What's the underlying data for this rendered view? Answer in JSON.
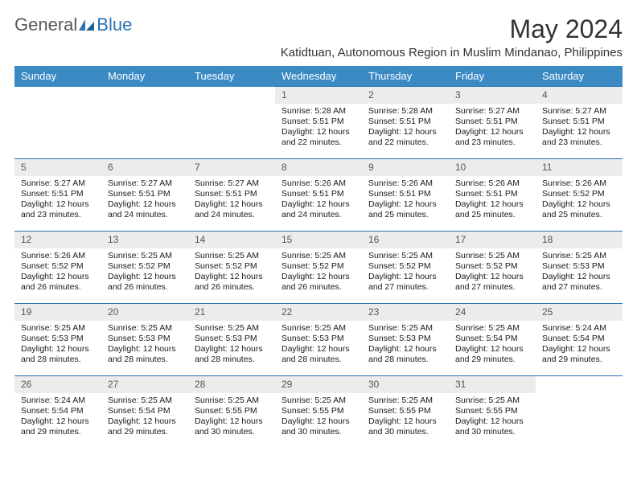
{
  "logo": {
    "general": "General",
    "blue": "Blue"
  },
  "title": "May 2024",
  "subtitle": "Katidtuan, Autonomous Region in Muslim Mindanao, Philippines",
  "colors": {
    "header_bg": "#3b8ac4",
    "header_text": "#ffffff",
    "border": "#2a72b5",
    "daynum_bg": "#ececec",
    "daynum_text": "#555555",
    "body_text": "#1a1a1a",
    "title_color": "#333333",
    "logo_gray": "#585858",
    "logo_blue": "#2a72b5"
  },
  "typography": {
    "title_fontsize": 32,
    "subtitle_fontsize": 15,
    "header_fontsize": 13,
    "cell_fontsize": 10.5,
    "daynum_fontsize": 12
  },
  "dayHeaders": [
    "Sunday",
    "Monday",
    "Tuesday",
    "Wednesday",
    "Thursday",
    "Friday",
    "Saturday"
  ],
  "weeks": [
    [
      null,
      null,
      null,
      {
        "n": "1",
        "sr": "Sunrise: 5:28 AM",
        "ss": "Sunset: 5:51 PM",
        "d1": "Daylight: 12 hours",
        "d2": "and 22 minutes."
      },
      {
        "n": "2",
        "sr": "Sunrise: 5:28 AM",
        "ss": "Sunset: 5:51 PM",
        "d1": "Daylight: 12 hours",
        "d2": "and 22 minutes."
      },
      {
        "n": "3",
        "sr": "Sunrise: 5:27 AM",
        "ss": "Sunset: 5:51 PM",
        "d1": "Daylight: 12 hours",
        "d2": "and 23 minutes."
      },
      {
        "n": "4",
        "sr": "Sunrise: 5:27 AM",
        "ss": "Sunset: 5:51 PM",
        "d1": "Daylight: 12 hours",
        "d2": "and 23 minutes."
      }
    ],
    [
      {
        "n": "5",
        "sr": "Sunrise: 5:27 AM",
        "ss": "Sunset: 5:51 PM",
        "d1": "Daylight: 12 hours",
        "d2": "and 23 minutes."
      },
      {
        "n": "6",
        "sr": "Sunrise: 5:27 AM",
        "ss": "Sunset: 5:51 PM",
        "d1": "Daylight: 12 hours",
        "d2": "and 24 minutes."
      },
      {
        "n": "7",
        "sr": "Sunrise: 5:27 AM",
        "ss": "Sunset: 5:51 PM",
        "d1": "Daylight: 12 hours",
        "d2": "and 24 minutes."
      },
      {
        "n": "8",
        "sr": "Sunrise: 5:26 AM",
        "ss": "Sunset: 5:51 PM",
        "d1": "Daylight: 12 hours",
        "d2": "and 24 minutes."
      },
      {
        "n": "9",
        "sr": "Sunrise: 5:26 AM",
        "ss": "Sunset: 5:51 PM",
        "d1": "Daylight: 12 hours",
        "d2": "and 25 minutes."
      },
      {
        "n": "10",
        "sr": "Sunrise: 5:26 AM",
        "ss": "Sunset: 5:51 PM",
        "d1": "Daylight: 12 hours",
        "d2": "and 25 minutes."
      },
      {
        "n": "11",
        "sr": "Sunrise: 5:26 AM",
        "ss": "Sunset: 5:52 PM",
        "d1": "Daylight: 12 hours",
        "d2": "and 25 minutes."
      }
    ],
    [
      {
        "n": "12",
        "sr": "Sunrise: 5:26 AM",
        "ss": "Sunset: 5:52 PM",
        "d1": "Daylight: 12 hours",
        "d2": "and 26 minutes."
      },
      {
        "n": "13",
        "sr": "Sunrise: 5:25 AM",
        "ss": "Sunset: 5:52 PM",
        "d1": "Daylight: 12 hours",
        "d2": "and 26 minutes."
      },
      {
        "n": "14",
        "sr": "Sunrise: 5:25 AM",
        "ss": "Sunset: 5:52 PM",
        "d1": "Daylight: 12 hours",
        "d2": "and 26 minutes."
      },
      {
        "n": "15",
        "sr": "Sunrise: 5:25 AM",
        "ss": "Sunset: 5:52 PM",
        "d1": "Daylight: 12 hours",
        "d2": "and 26 minutes."
      },
      {
        "n": "16",
        "sr": "Sunrise: 5:25 AM",
        "ss": "Sunset: 5:52 PM",
        "d1": "Daylight: 12 hours",
        "d2": "and 27 minutes."
      },
      {
        "n": "17",
        "sr": "Sunrise: 5:25 AM",
        "ss": "Sunset: 5:52 PM",
        "d1": "Daylight: 12 hours",
        "d2": "and 27 minutes."
      },
      {
        "n": "18",
        "sr": "Sunrise: 5:25 AM",
        "ss": "Sunset: 5:53 PM",
        "d1": "Daylight: 12 hours",
        "d2": "and 27 minutes."
      }
    ],
    [
      {
        "n": "19",
        "sr": "Sunrise: 5:25 AM",
        "ss": "Sunset: 5:53 PM",
        "d1": "Daylight: 12 hours",
        "d2": "and 28 minutes."
      },
      {
        "n": "20",
        "sr": "Sunrise: 5:25 AM",
        "ss": "Sunset: 5:53 PM",
        "d1": "Daylight: 12 hours",
        "d2": "and 28 minutes."
      },
      {
        "n": "21",
        "sr": "Sunrise: 5:25 AM",
        "ss": "Sunset: 5:53 PM",
        "d1": "Daylight: 12 hours",
        "d2": "and 28 minutes."
      },
      {
        "n": "22",
        "sr": "Sunrise: 5:25 AM",
        "ss": "Sunset: 5:53 PM",
        "d1": "Daylight: 12 hours",
        "d2": "and 28 minutes."
      },
      {
        "n": "23",
        "sr": "Sunrise: 5:25 AM",
        "ss": "Sunset: 5:53 PM",
        "d1": "Daylight: 12 hours",
        "d2": "and 28 minutes."
      },
      {
        "n": "24",
        "sr": "Sunrise: 5:25 AM",
        "ss": "Sunset: 5:54 PM",
        "d1": "Daylight: 12 hours",
        "d2": "and 29 minutes."
      },
      {
        "n": "25",
        "sr": "Sunrise: 5:24 AM",
        "ss": "Sunset: 5:54 PM",
        "d1": "Daylight: 12 hours",
        "d2": "and 29 minutes."
      }
    ],
    [
      {
        "n": "26",
        "sr": "Sunrise: 5:24 AM",
        "ss": "Sunset: 5:54 PM",
        "d1": "Daylight: 12 hours",
        "d2": "and 29 minutes."
      },
      {
        "n": "27",
        "sr": "Sunrise: 5:25 AM",
        "ss": "Sunset: 5:54 PM",
        "d1": "Daylight: 12 hours",
        "d2": "and 29 minutes."
      },
      {
        "n": "28",
        "sr": "Sunrise: 5:25 AM",
        "ss": "Sunset: 5:55 PM",
        "d1": "Daylight: 12 hours",
        "d2": "and 30 minutes."
      },
      {
        "n": "29",
        "sr": "Sunrise: 5:25 AM",
        "ss": "Sunset: 5:55 PM",
        "d1": "Daylight: 12 hours",
        "d2": "and 30 minutes."
      },
      {
        "n": "30",
        "sr": "Sunrise: 5:25 AM",
        "ss": "Sunset: 5:55 PM",
        "d1": "Daylight: 12 hours",
        "d2": "and 30 minutes."
      },
      {
        "n": "31",
        "sr": "Sunrise: 5:25 AM",
        "ss": "Sunset: 5:55 PM",
        "d1": "Daylight: 12 hours",
        "d2": "and 30 minutes."
      },
      null
    ]
  ]
}
